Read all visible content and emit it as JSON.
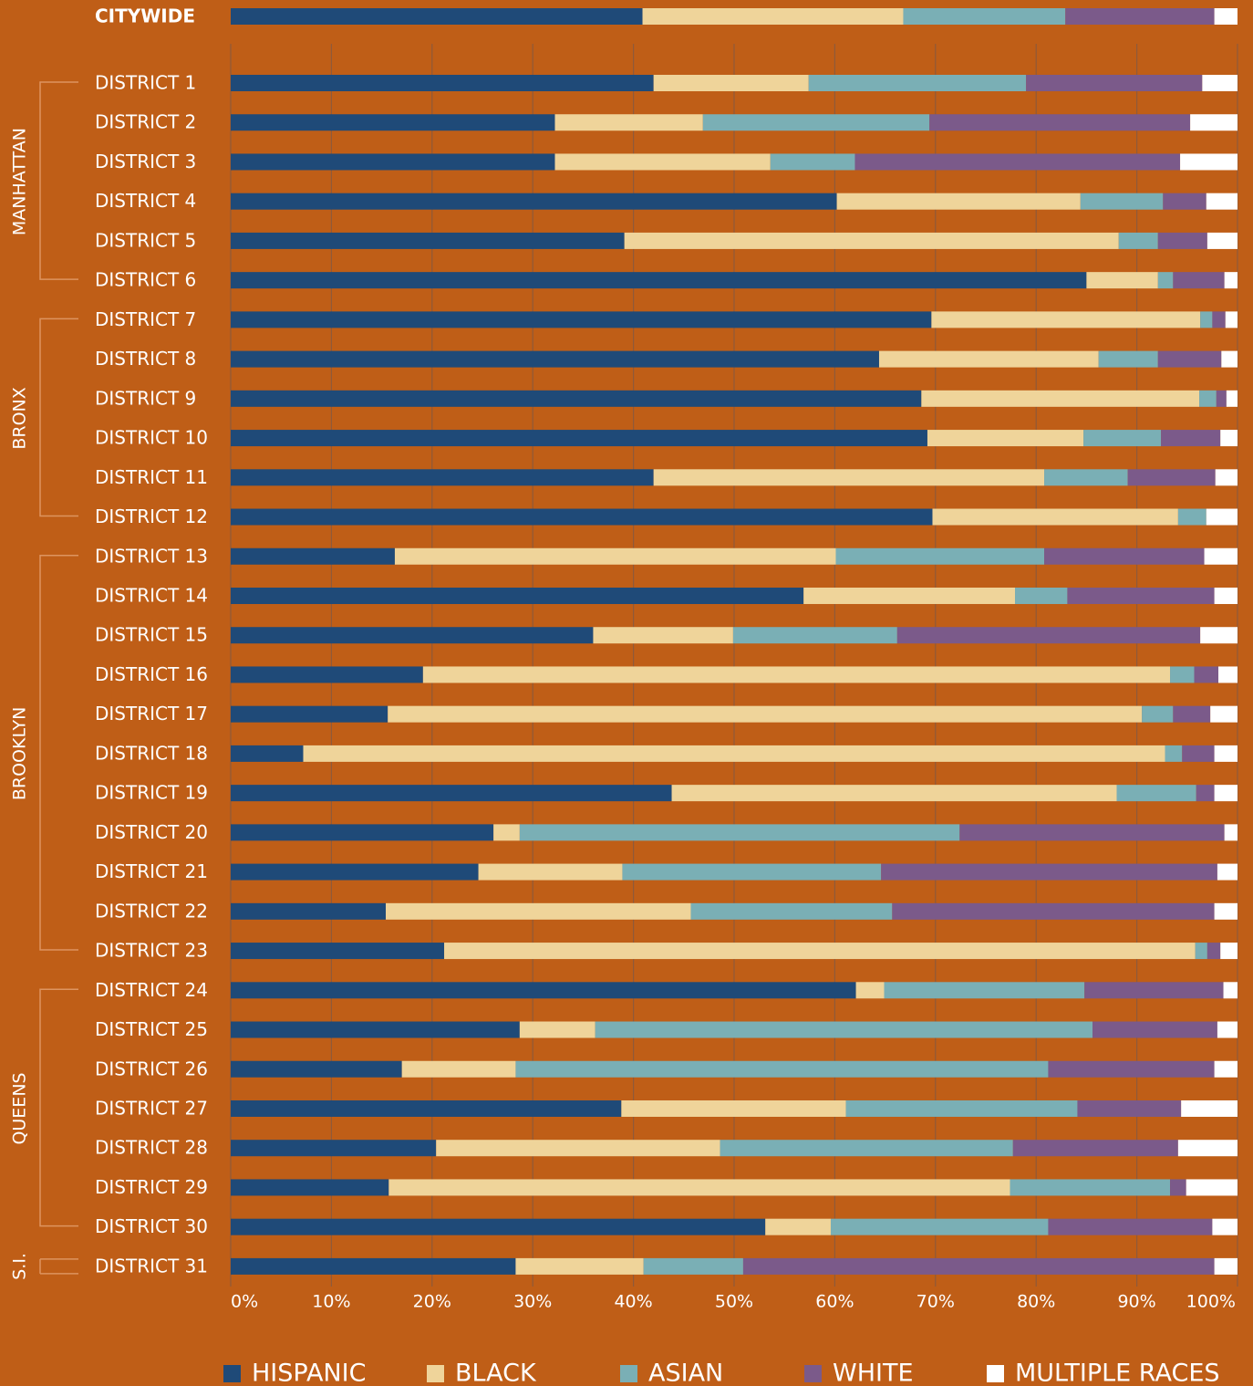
{
  "chart_data": {
    "type": "stacked_bar_horizontal",
    "categories": [
      "CITYWIDE",
      "DISTRICT 1",
      "DISTRICT 2",
      "DISTRICT 3",
      "DISTRICT 4",
      "DISTRICT 5",
      "DISTRICT 6",
      "DISTRICT 7",
      "DISTRICT 8",
      "DISTRICT 9",
      "DISTRICT 10",
      "DISTRICT 11",
      "DISTRICT 12",
      "DISTRICT 13",
      "DISTRICT 14",
      "DISTRICT 15",
      "DISTRICT 16",
      "DISTRICT 17",
      "DISTRICT 18",
      "DISTRICT 19",
      "DISTRICT 20",
      "DISTRICT 21",
      "DISTRICT 22",
      "DISTRICT 23",
      "DISTRICT 24",
      "DISTRICT 25",
      "DISTRICT 26",
      "DISTRICT 27",
      "DISTRICT 28",
      "DISTRICT 29",
      "DISTRICT 30",
      "DISTRICT 31"
    ],
    "groups": [
      "MANHATTAN",
      "BRONX",
      "BROOKLYN",
      "QUEENS",
      "S.I."
    ],
    "series": [
      {
        "name": "HISPANIC",
        "color": "#1f4a78",
        "values": [
          40.9,
          42.0,
          32.2,
          32.2,
          60.2,
          39.1,
          85.0,
          69.6,
          64.4,
          68.6,
          69.2,
          42.0,
          69.7,
          16.3,
          56.9,
          36.0,
          19.1,
          15.6,
          7.2,
          43.8,
          26.1,
          24.6,
          15.4,
          21.2,
          62.1,
          28.7,
          17.0,
          38.8,
          20.4,
          15.7,
          53.1,
          28.3
        ]
      },
      {
        "name": "BLACK",
        "color": "#efd49a",
        "values": [
          25.9,
          15.4,
          14.7,
          21.4,
          24.2,
          49.1,
          7.1,
          26.7,
          21.8,
          27.6,
          15.5,
          38.8,
          24.4,
          43.8,
          21.0,
          13.9,
          74.2,
          74.9,
          85.6,
          44.2,
          2.6,
          14.3,
          30.3,
          74.6,
          2.8,
          7.5,
          11.3,
          22.3,
          28.2,
          61.7,
          6.5,
          12.7
        ]
      },
      {
        "name": "ASIAN",
        "color": "#7aafb5",
        "values": [
          16.1,
          21.6,
          22.5,
          8.4,
          8.2,
          3.9,
          1.5,
          1.2,
          5.9,
          1.7,
          7.7,
          8.3,
          2.8,
          20.7,
          5.2,
          16.3,
          2.4,
          3.1,
          1.7,
          7.9,
          43.7,
          25.7,
          20.0,
          1.2,
          19.9,
          49.4,
          52.9,
          23.0,
          29.1,
          15.9,
          21.6,
          9.9
        ]
      },
      {
        "name": "WHITE",
        "color": "#7b5a8a",
        "values": [
          14.8,
          17.5,
          25.9,
          32.3,
          4.3,
          4.9,
          5.1,
          1.3,
          6.3,
          1.0,
          5.9,
          8.7,
          0,
          15.9,
          14.6,
          30.1,
          2.4,
          3.7,
          3.2,
          1.8,
          26.3,
          33.4,
          32.0,
          1.3,
          13.8,
          12.4,
          16.5,
          10.3,
          16.4,
          1.6,
          16.3,
          46.8
        ]
      },
      {
        "name": "MULTIPLE RACES",
        "color": "#ffffff",
        "values": [
          2.3,
          3.5,
          4.7,
          5.7,
          3.1,
          3.0,
          1.3,
          1.2,
          1.6,
          1.1,
          1.7,
          2.2,
          3.1,
          3.3,
          2.3,
          3.7,
          1.9,
          2.7,
          2.3,
          2.3,
          1.3,
          2.0,
          2.3,
          1.7,
          1.4,
          2.0,
          2.3,
          5.6,
          5.9,
          5.1,
          2.5,
          2.3
        ]
      }
    ],
    "xlim": [
      0,
      100
    ],
    "xticks": [
      {
        "value": 0,
        "label": "0%"
      },
      {
        "value": 10,
        "label": "10%"
      },
      {
        "value": 20,
        "label": "20%"
      },
      {
        "value": 30,
        "label": "30%"
      },
      {
        "value": 40,
        "label": "40%"
      },
      {
        "value": 50,
        "label": "50%"
      },
      {
        "value": 60,
        "label": "60%"
      },
      {
        "value": 70,
        "label": "70%"
      },
      {
        "value": 80,
        "label": "80%"
      },
      {
        "value": 90,
        "label": "90%"
      },
      {
        "value": 100,
        "label": "100%"
      }
    ],
    "grid": true,
    "legend": "bottom"
  }
}
